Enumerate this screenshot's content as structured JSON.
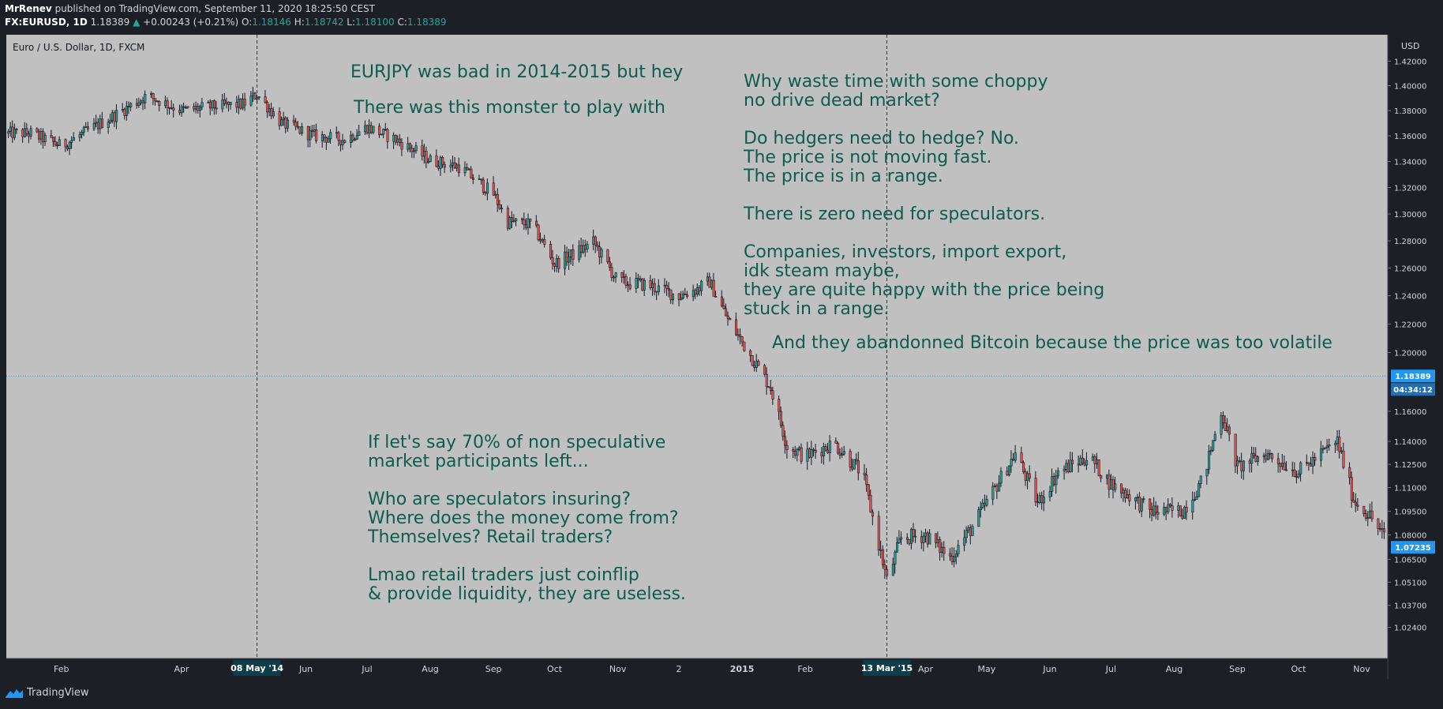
{
  "header": {
    "author": "MrRenev",
    "published_text": "published on TradingView.com, September 11, 2020 18:25:50 CEST",
    "symbol": "FX:EURUSD, 1D",
    "last": "1.18389",
    "change_arrow": "▲",
    "change": "+0.00243 (+0.21%)",
    "o_label": "O:",
    "o": "1.18146",
    "h_label": "H:",
    "h": "1.18742",
    "l_label": "L:",
    "l": "1.18100",
    "c_label": "C:",
    "c": "1.18389"
  },
  "footer": {
    "brand": "TradingView",
    "logo_icon": "tradingview-logo-icon"
  },
  "colors": {
    "up": "#26a69a",
    "down": "#ef5350",
    "annotation": "#0d5c4c",
    "plot_bg": "#c0c0c0",
    "price_tag": "#2196f3"
  },
  "chart_data": {
    "type": "candlestick",
    "title": "Euro / U.S. Dollar, 1D, FXCM",
    "currency": "USD",
    "y_scale": "log",
    "ylim": [
      1.0135,
      1.43
    ],
    "y_ticks": [
      "1.42000",
      "1.40000",
      "1.38000",
      "1.36000",
      "1.34000",
      "1.32000",
      "1.30000",
      "1.28000",
      "1.26000",
      "1.24000",
      "1.22000",
      "1.20000",
      "1.16000",
      "1.14000",
      "1.12500",
      "1.11000",
      "1.09500",
      "1.08000",
      "1.06500",
      "1.05100",
      "1.03700",
      "1.02400"
    ],
    "x_ticks": [
      "Feb",
      "Apr",
      "Jun",
      "Jul",
      "Aug",
      "Sep",
      "Oct",
      "Nov",
      "2",
      "2015",
      "Feb",
      "Apr",
      "May",
      "Jun",
      "Jul",
      "Aug",
      "Sep",
      "Oct",
      "Nov"
    ],
    "series": [
      {
        "x": [
          "2014-01-17",
          "2014-02-01",
          "2014-03-01",
          "2014-03-15",
          "2014-04-01",
          "2014-04-15",
          "2014-05-01",
          "2014-05-08",
          "2014-05-20",
          "2014-06-05",
          "2014-06-20",
          "2014-07-01",
          "2014-07-15",
          "2014-08-01",
          "2014-08-15",
          "2014-09-01",
          "2014-09-08",
          "2014-09-20",
          "2014-10-01",
          "2014-10-10",
          "2014-10-20",
          "2014-11-01",
          "2014-11-15",
          "2014-12-01",
          "2014-12-10",
          "2014-12-16",
          "2014-12-25",
          "2015-01-06",
          "2015-01-15",
          "2015-01-23",
          "2015-02-01",
          "2015-02-15",
          "2015-03-01",
          "2015-03-13",
          "2015-03-20",
          "2015-04-01",
          "2015-04-13",
          "2015-04-25",
          "2015-05-15",
          "2015-05-26",
          "2015-06-05",
          "2015-06-20",
          "2015-07-01",
          "2015-07-10",
          "2015-07-20",
          "2015-08-05",
          "2015-08-15",
          "2015-08-24",
          "2015-09-01",
          "2015-09-15",
          "2015-10-01",
          "2015-10-15",
          "2015-10-20",
          "2015-10-28",
          "2015-11-05",
          "2015-11-15"
        ],
        "values": [
          1.362,
          1.352,
          1.378,
          1.392,
          1.38,
          1.383,
          1.385,
          1.393,
          1.37,
          1.36,
          1.357,
          1.367,
          1.357,
          1.341,
          1.336,
          1.315,
          1.294,
          1.292,
          1.263,
          1.27,
          1.279,
          1.25,
          1.248,
          1.24,
          1.245,
          1.25,
          1.223,
          1.196,
          1.176,
          1.137,
          1.13,
          1.139,
          1.119,
          1.052,
          1.078,
          1.08,
          1.066,
          1.087,
          1.132,
          1.1,
          1.12,
          1.13,
          1.112,
          1.105,
          1.095,
          1.095,
          1.115,
          1.16,
          1.123,
          1.132,
          1.12,
          1.135,
          1.14,
          1.102,
          1.092,
          1.073
        ]
      }
    ],
    "markers": [
      {
        "x": "2014-05-08",
        "label": "08 May '14"
      },
      {
        "x": "2015-03-13",
        "label": "13 Mar '15"
      }
    ],
    "price_line": {
      "value": 1.18389,
      "label": "1.18389",
      "countdown": "04:34:12"
    },
    "last_price": {
      "value": 1.07235,
      "label": "1.07235"
    },
    "annotations": {
      "a1": [
        "EURJPY was bad in 2014-2015 but hey",
        "There was this monster to play with"
      ],
      "a2": [
        "Why waste time with some choppy",
        "no drive dead market?",
        "",
        "Do hedgers need to hedge? No.",
        "The price is not moving fast.",
        "The price is in a range.",
        "",
        "There is zero need for speculators.",
        "",
        "Companies, investors, import export,",
        "idk steam maybe,",
        "they are quite happy with the price being",
        "stuck in a range."
      ],
      "a3": [
        "And they abandonned Bitcoin because the price was too volatile"
      ],
      "a4": [
        "If let's say 70% of non speculative",
        "market participants left...",
        "",
        "Who are speculators insuring?",
        "Where does the money come from?",
        "Themselves? Retail traders?",
        "",
        "Lmao retail traders just coinflip",
        "& provide liquidity, they are useless."
      ]
    }
  }
}
